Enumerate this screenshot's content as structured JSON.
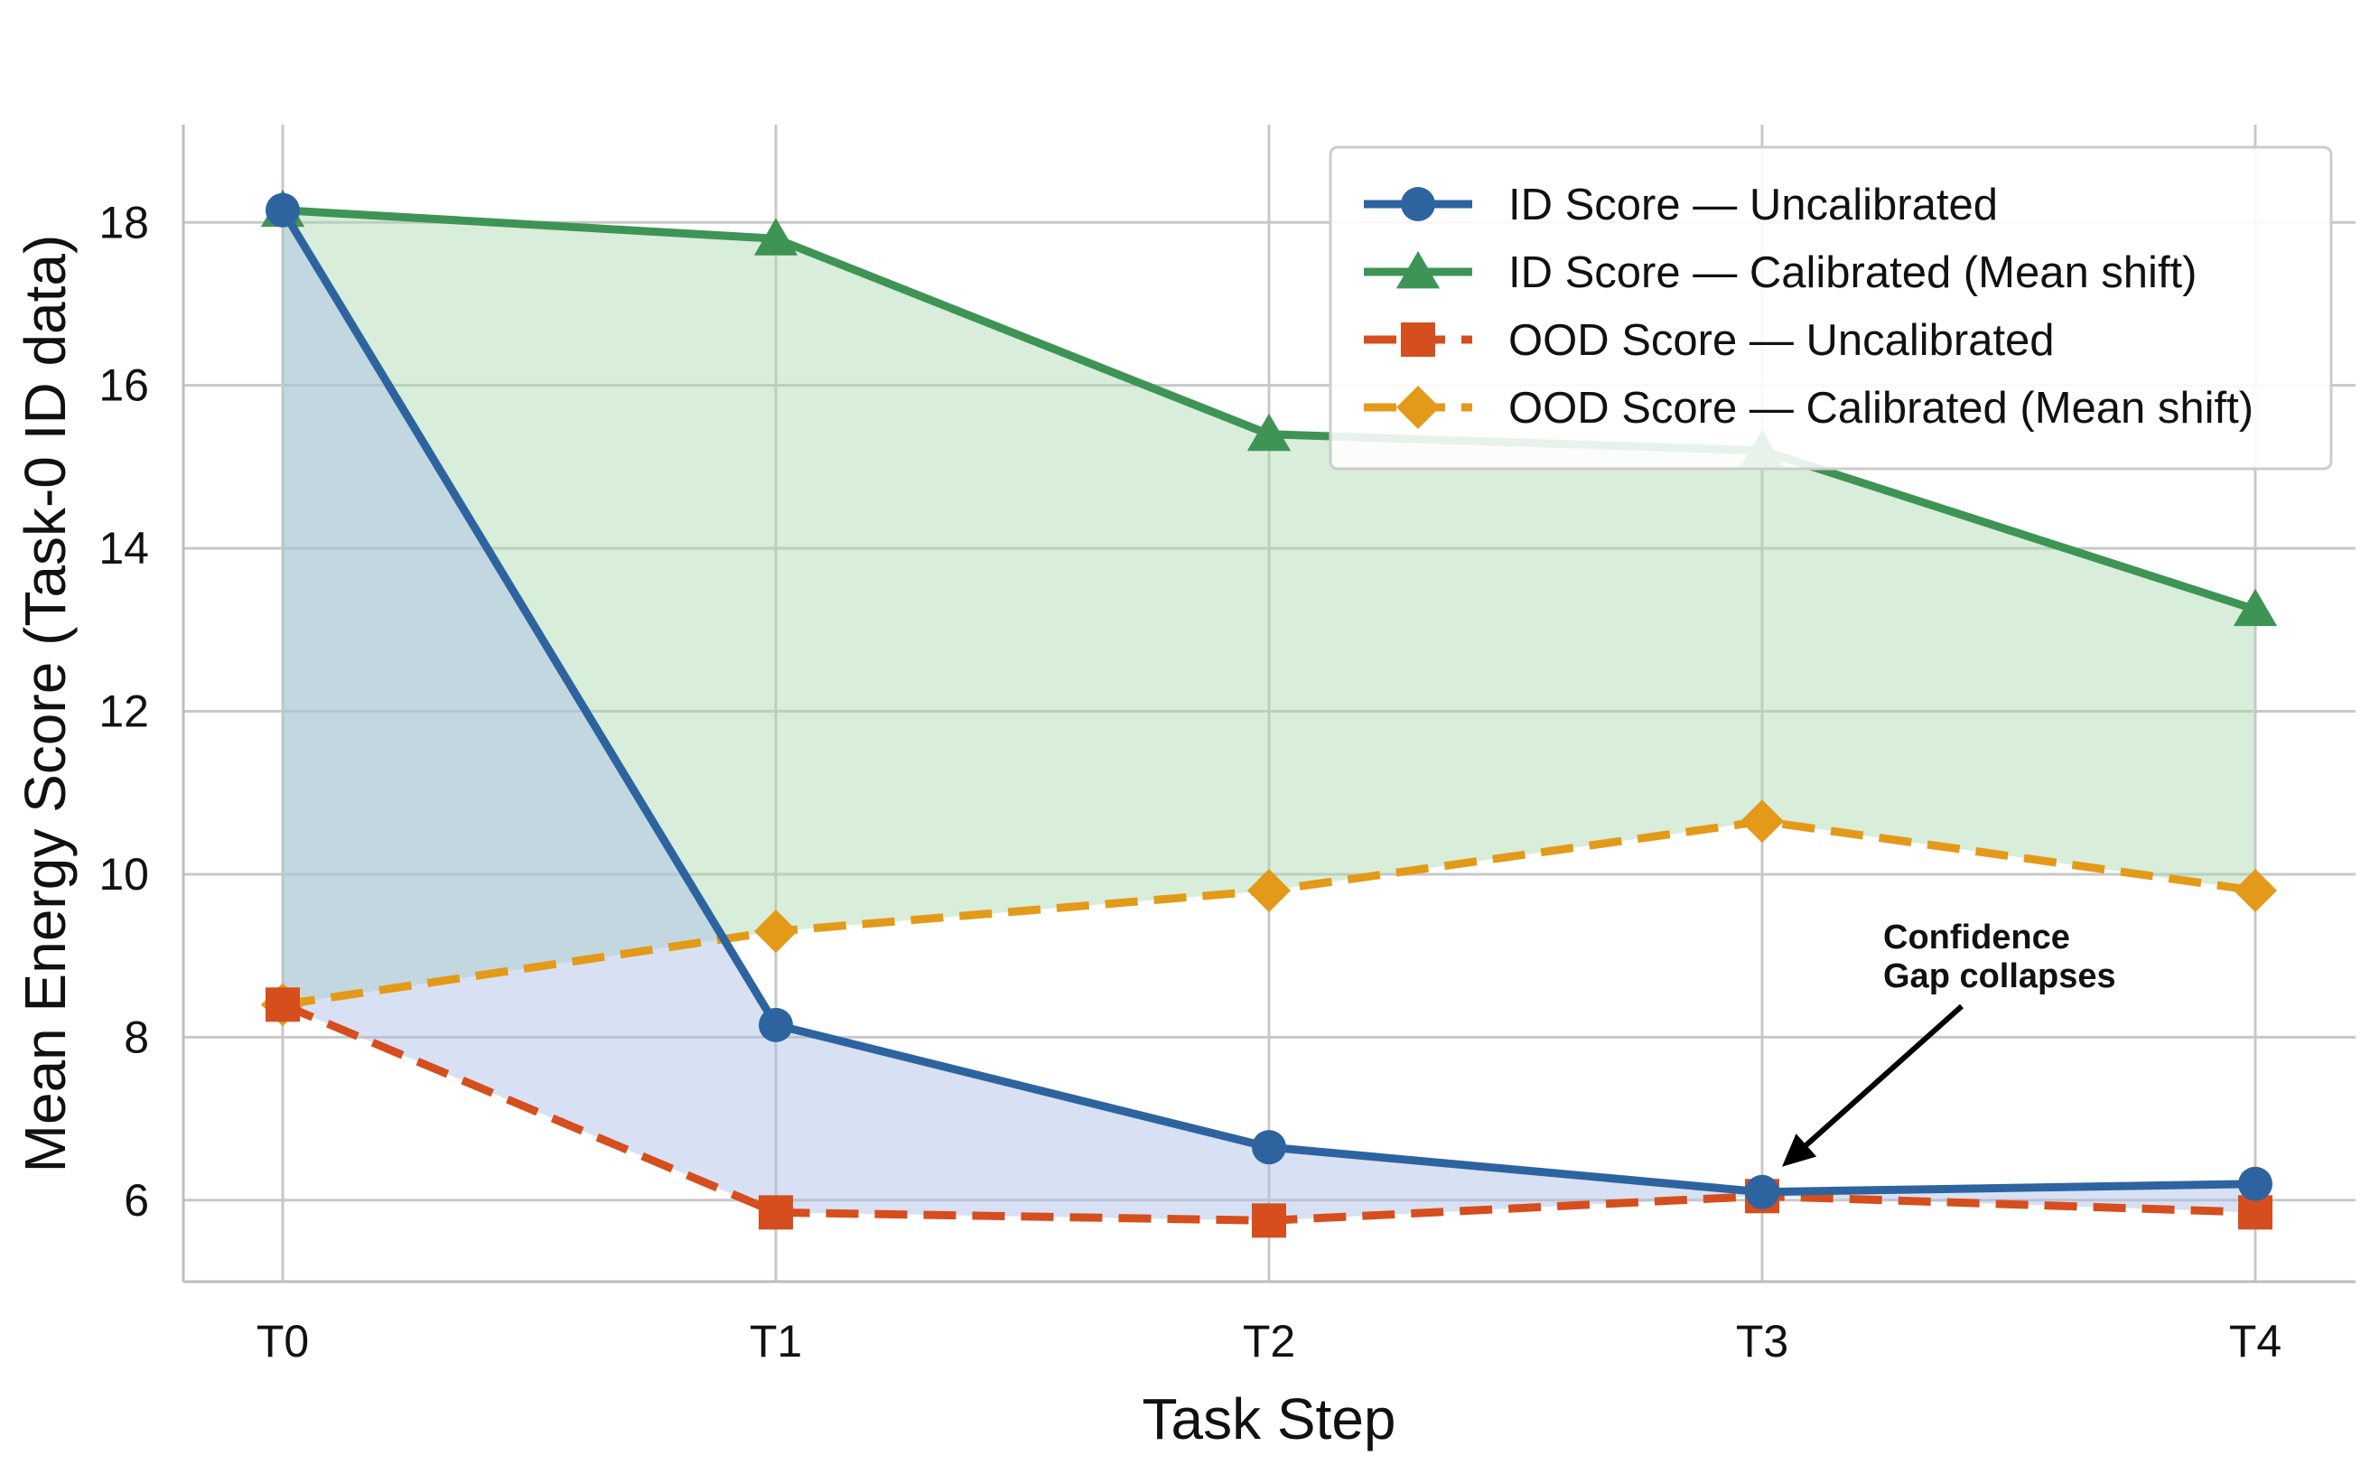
{
  "chart_data": {
    "type": "line",
    "title": "",
    "xlabel": "Task Step",
    "ylabel": "Mean Energy Score (Task-0 ID data)",
    "categories": [
      "T0",
      "T1",
      "T2",
      "T3",
      "T4"
    ],
    "ylim": [
      5,
      19.2
    ],
    "yticks": [
      6,
      8,
      10,
      12,
      14,
      16,
      18
    ],
    "grid": true,
    "legend_position": "top-right",
    "series": [
      {
        "name": "ID Score — Uncalibrated",
        "values": [
          18.15,
          8.15,
          6.65,
          6.1,
          6.2
        ],
        "color": "#2d64a0",
        "marker": "circle",
        "dash": "solid"
      },
      {
        "name": "ID Score — Calibrated (Mean shift)",
        "values": [
          18.15,
          17.8,
          15.4,
          15.2,
          13.25
        ],
        "color": "#3e9455",
        "marker": "triangle",
        "dash": "solid"
      },
      {
        "name": "OOD Score — Uncalibrated",
        "values": [
          8.4,
          5.85,
          5.75,
          6.05,
          5.85
        ],
        "color": "#d64e1e",
        "marker": "square",
        "dash": "dashed"
      },
      {
        "name": "OOD Score — Calibrated (Mean shift)",
        "values": [
          8.4,
          9.3,
          9.8,
          10.65,
          9.8
        ],
        "color": "#e39a18",
        "marker": "diamond",
        "dash": "dashed"
      }
    ],
    "fills": [
      {
        "between": [
          1,
          3
        ],
        "color": "#a9d7ad"
      },
      {
        "between": [
          0,
          2
        ],
        "color": "#a9bde4"
      }
    ],
    "annotations": [
      {
        "text_lines": [
          "Confidence",
          "Gap collapses"
        ],
        "points_to": {
          "x": "T3",
          "y": 6.1
        }
      }
    ]
  }
}
